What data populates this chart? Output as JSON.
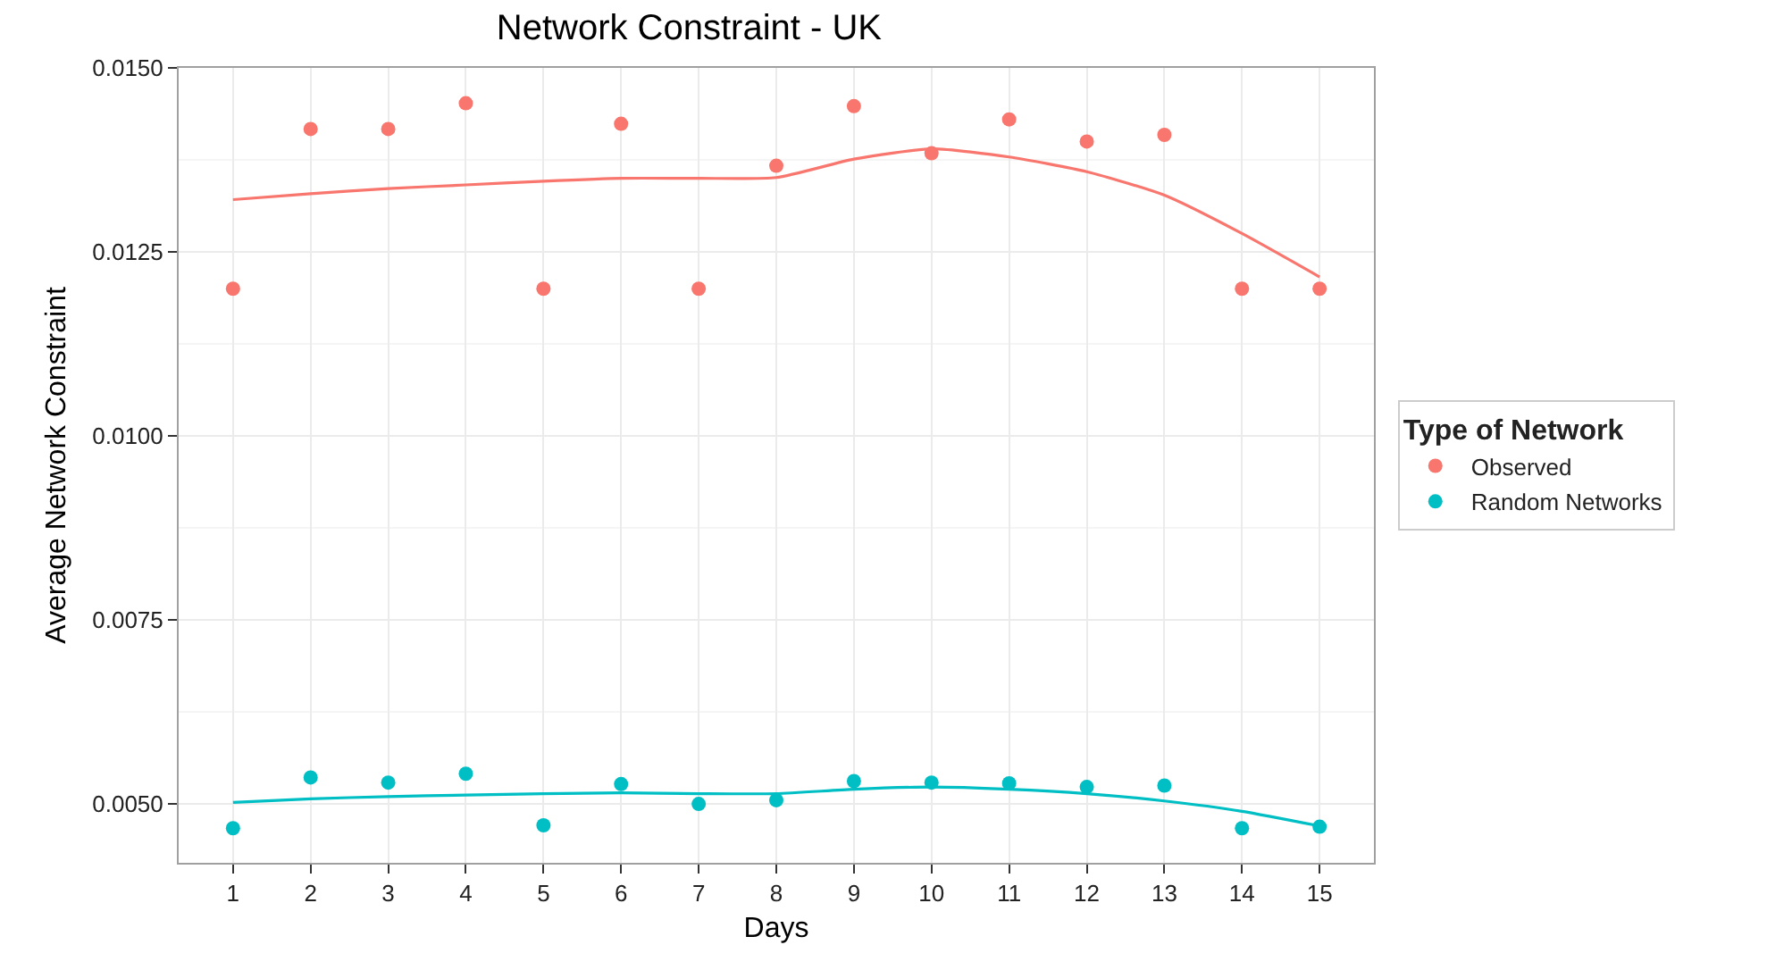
{
  "chart_data": {
    "type": "scatter",
    "title": "Network Constraint - UK",
    "xlabel": "Days",
    "ylabel": "Average Network Constraint",
    "legend_title": "Type of Network",
    "x": [
      1,
      2,
      3,
      4,
      5,
      6,
      7,
      8,
      9,
      10,
      11,
      12,
      13,
      14,
      15
    ],
    "xlim": [
      0.3,
      15.7
    ],
    "xticks": [
      1,
      2,
      3,
      4,
      5,
      6,
      7,
      8,
      9,
      10,
      11,
      12,
      13,
      14,
      15
    ],
    "ylim": [
      0.0042,
      0.015
    ],
    "yticks": [
      {
        "value": 0.005,
        "label": "0.0050"
      },
      {
        "value": 0.0075,
        "label": "0.0075"
      },
      {
        "value": 0.01,
        "label": "0.0100"
      },
      {
        "value": 0.0125,
        "label": "0.0125"
      },
      {
        "value": 0.015,
        "label": "0.0150"
      }
    ],
    "grid": true,
    "legend": "right",
    "marker": "circle",
    "series": [
      {
        "name": "Observed",
        "type": "scatter",
        "color": "#f8766d",
        "values": [
          0.012,
          0.01417,
          0.01417,
          0.01452,
          0.012,
          0.01424,
          0.012,
          0.01367,
          0.01448,
          0.01384,
          0.0143,
          0.014,
          0.01409,
          0.012,
          0.012
        ]
      },
      {
        "type": "line",
        "marker": "none",
        "color": "#f8766d",
        "values": [
          0.01321,
          0.01329,
          0.01336,
          0.01341,
          0.01346,
          0.0135,
          0.0135,
          0.01351,
          0.01376,
          0.0139,
          0.01379,
          0.01359,
          0.01327,
          0.01275,
          0.01216
        ]
      },
      {
        "name": "Random Networks",
        "type": "scatter",
        "color": "#00bfc4",
        "values": [
          0.00467,
          0.00536,
          0.00529,
          0.00541,
          0.00471,
          0.00527,
          0.005,
          0.00505,
          0.00531,
          0.00529,
          0.00528,
          0.00523,
          0.00525,
          0.00467,
          0.00469
        ]
      },
      {
        "type": "line",
        "marker": "none",
        "color": "#00bfc4",
        "values": [
          0.00502,
          0.00507,
          0.0051,
          0.00512,
          0.00514,
          0.00515,
          0.00514,
          0.00514,
          0.0052,
          0.00523,
          0.0052,
          0.00514,
          0.00504,
          0.0049,
          0.0047
        ]
      }
    ]
  }
}
